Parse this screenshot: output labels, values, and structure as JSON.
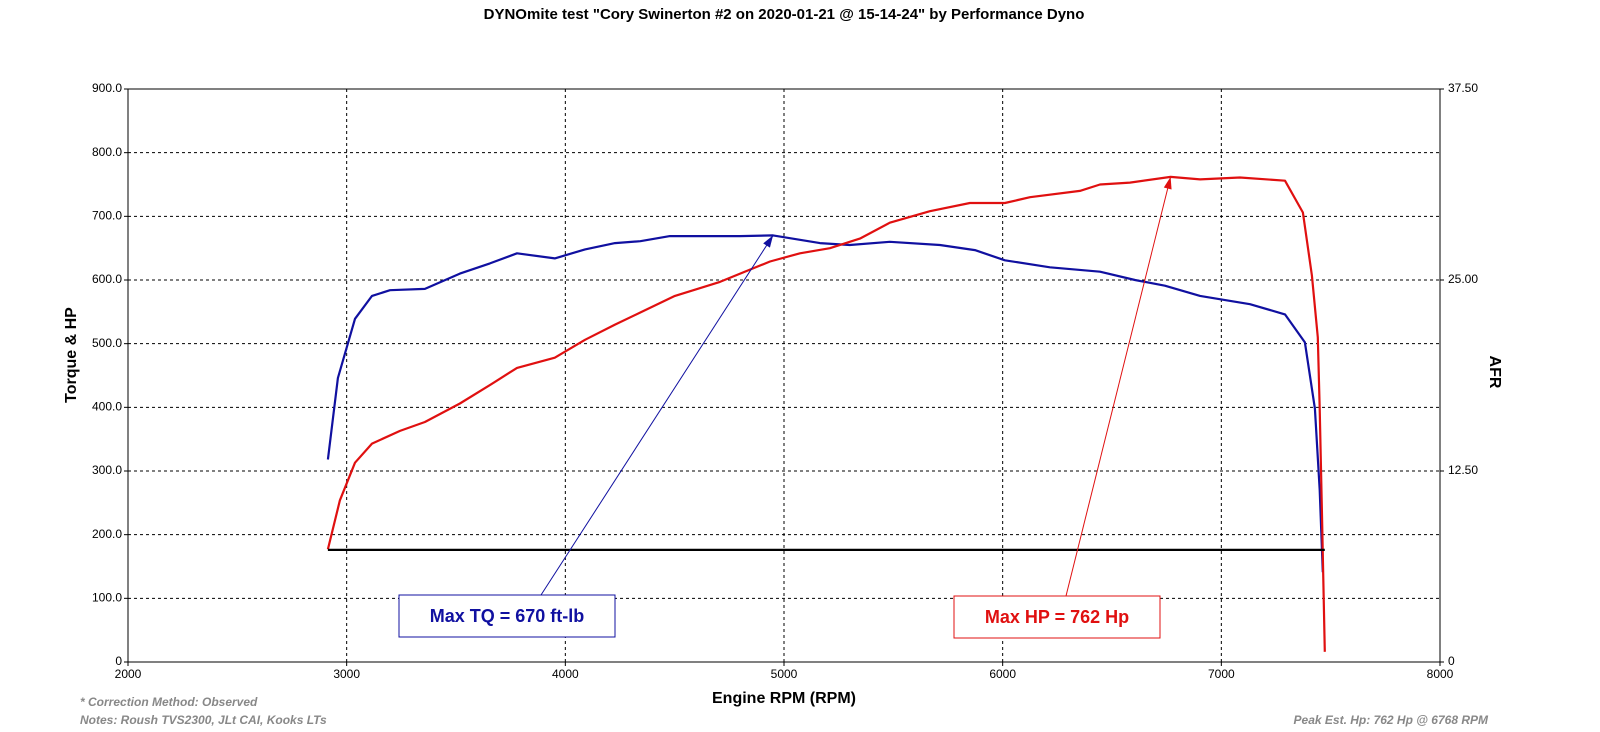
{
  "chart_data": {
    "type": "line",
    "title": "DYNOmite test \"Cory Swinerton #2 on 2020-01-21 @ 15-14-24\" by Performance Dyno",
    "x_label": "Engine RPM (RPM)",
    "y_label": "Torque & HP",
    "y2_label": "AFR",
    "xlim": [
      2000,
      8000
    ],
    "xticks": [
      2000,
      3000,
      4000,
      5000,
      6000,
      7000,
      8000
    ],
    "ylim": [
      0,
      900
    ],
    "yticks": [
      0,
      {
        "value": 100,
        "label": "100.0"
      },
      {
        "value": 200,
        "label": "200.0"
      },
      {
        "value": 300,
        "label": "300.0"
      },
      {
        "value": 400,
        "label": "400.0"
      },
      {
        "value": 500,
        "label": "500.0"
      },
      {
        "value": 600,
        "label": "600.0"
      },
      {
        "value": 700,
        "label": "700.0"
      },
      {
        "value": 800,
        "label": "800.0"
      },
      {
        "value": 900,
        "label": "900.0"
      }
    ],
    "y2lim": [
      0,
      37.5
    ],
    "y2ticks": [
      0,
      {
        "value": 12.5,
        "label": "12.50"
      },
      {
        "value": 25,
        "label": "25.00"
      },
      {
        "value": 37.5,
        "label": "37.50"
      }
    ],
    "grid": true,
    "series": [
      {
        "color": "#1010a0",
        "x": [
          2914,
          2960,
          3038,
          3116,
          3198,
          3358,
          3518,
          3655,
          3779,
          3952,
          4090,
          4227,
          4343,
          4478,
          4798,
          4950,
          5164,
          5301,
          5484,
          5713,
          5873,
          6010,
          6216,
          6445,
          6605,
          6742,
          6903,
          7131,
          7291,
          7382,
          7428,
          7450,
          7464
        ],
        "values": [
          318,
          446,
          539,
          575,
          584,
          586,
          610,
          626,
          642,
          634,
          648,
          658,
          661,
          669,
          669,
          670,
          658,
          655,
          660,
          655,
          647,
          631,
          620,
          613,
          600,
          591,
          575,
          562,
          546,
          502,
          398,
          270,
          141
        ]
      },
      {
        "color": "#e01010",
        "x": [
          2914,
          2969,
          3038,
          3116,
          3244,
          3358,
          3518,
          3655,
          3779,
          3952,
          4090,
          4227,
          4343,
          4501,
          4707,
          4936,
          5073,
          5210,
          5347,
          5484,
          5667,
          5850,
          6010,
          6125,
          6353,
          6445,
          6582,
          6768,
          6903,
          7085,
          7291,
          7373,
          7414,
          7441,
          7450,
          7460,
          7473
        ],
        "values": [
          177,
          254,
          313,
          343,
          363,
          377,
          406,
          435,
          462,
          478,
          506,
          530,
          549,
          575,
          597,
          629,
          642,
          650,
          665,
          690,
          708,
          721,
          721,
          730,
          740,
          750,
          753,
          762,
          758,
          761,
          756,
          706,
          607,
          510,
          398,
          238,
          16
        ]
      },
      {
        "color": "#000000",
        "x": [
          2914,
          7473
        ],
        "values": [
          176,
          176
        ]
      }
    ],
    "annotations": [
      {
        "text": "Max TQ =  670 ft-lb",
        "color": "#1010a0",
        "x": 4950,
        "y": 670
      },
      {
        "text": "Max HP =  762 Hp",
        "color": "#e01010",
        "x": 6768,
        "y": 762
      }
    ],
    "notes": [
      "* Correction Method: Observed",
      "Notes: Roush TVS2300, JLt CAI, Kooks LTs"
    ],
    "peak_note": "Peak Est. Hp: 762 Hp @ 6768 RPM"
  }
}
